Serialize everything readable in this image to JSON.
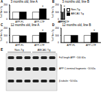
{
  "chart_data": [
    {
      "panel": "A",
      "type": "bar",
      "title": "3 months old, line A",
      "ylabel": "% of Non-Tg",
      "categories": [
        "APP-FL",
        "APP-CTF"
      ],
      "series": [
        {
          "name": "Non-Tg",
          "color": "#ffffff",
          "values": [
            100,
            100
          ]
        },
        {
          "name": "ABCA1 Tg",
          "color": "#000000",
          "values": [
            102,
            145
          ]
        }
      ],
      "ylim": [
        0,
        200
      ],
      "yticks": [
        0,
        100,
        200
      ],
      "annotations": [
        {
          "text": "*",
          "series": "ABCA1 Tg",
          "category": "APP-CTF"
        }
      ]
    },
    {
      "panel": "B",
      "type": "bar",
      "title": "3 months old, line B",
      "ylabel": "% of Non-Tg",
      "categories": [
        "APP-FL",
        "APP-CTF"
      ],
      "series": [
        {
          "name": "Non-Tg",
          "color": "#ffffff",
          "values": [
            100,
            100
          ]
        },
        {
          "name": "ABCA1 Tg",
          "color": "#000000",
          "values": [
            98,
            150
          ]
        }
      ],
      "ylim": [
        0,
        200
      ],
      "yticks": [
        0,
        100,
        200
      ],
      "legend": "right",
      "annotations": [
        {
          "text": "*",
          "series": "ABCA1 Tg",
          "category": "APP-CTF"
        }
      ]
    },
    {
      "panel": "C",
      "type": "bar",
      "title": "12 months old, line A",
      "ylabel": "% of Non-Tg",
      "categories": [
        "APP-FL",
        "APP-CTF"
      ],
      "series": [
        {
          "name": "Non-Tg",
          "color": "#ffffff",
          "values": [
            100,
            100
          ]
        },
        {
          "name": "ABCA1 Tg",
          "color": "#000000",
          "values": [
            96,
            140
          ]
        }
      ],
      "ylim": [
        0,
        200
      ],
      "yticks": [
        0,
        100,
        200
      ],
      "annotations": [
        {
          "text": "*",
          "series": "ABCA1 Tg",
          "category": "APP-CTF"
        }
      ]
    },
    {
      "panel": "D",
      "type": "bar",
      "title": "12 months old, line B",
      "ylabel": "% of Non-Tg",
      "categories": [
        "APP-FL",
        "APP-CTF"
      ],
      "series": [
        {
          "name": "Non-Tg",
          "color": "#ffffff",
          "values": [
            100,
            100
          ]
        },
        {
          "name": "ABCA1 Tg",
          "color": "#000000",
          "values": [
            101,
            138
          ]
        }
      ],
      "ylim": [
        0,
        200
      ],
      "yticks": [
        0,
        100,
        200
      ],
      "annotations": [
        {
          "text": "*",
          "series": "ABCA1 Tg",
          "category": "APP-CTF"
        }
      ]
    }
  ],
  "blot": {
    "panel": "E",
    "lanes": [
      {
        "label": "Non-Tg",
        "count": 3
      },
      {
        "label": "ABCA1 Tg",
        "count": 3
      }
    ],
    "bands": [
      {
        "label": "Full length APP ~100 kDa"
      },
      {
        "label": "APP C-terminal fragments ~10 kDa"
      },
      {
        "label": "β-tubulin ~50 kDa"
      }
    ]
  }
}
